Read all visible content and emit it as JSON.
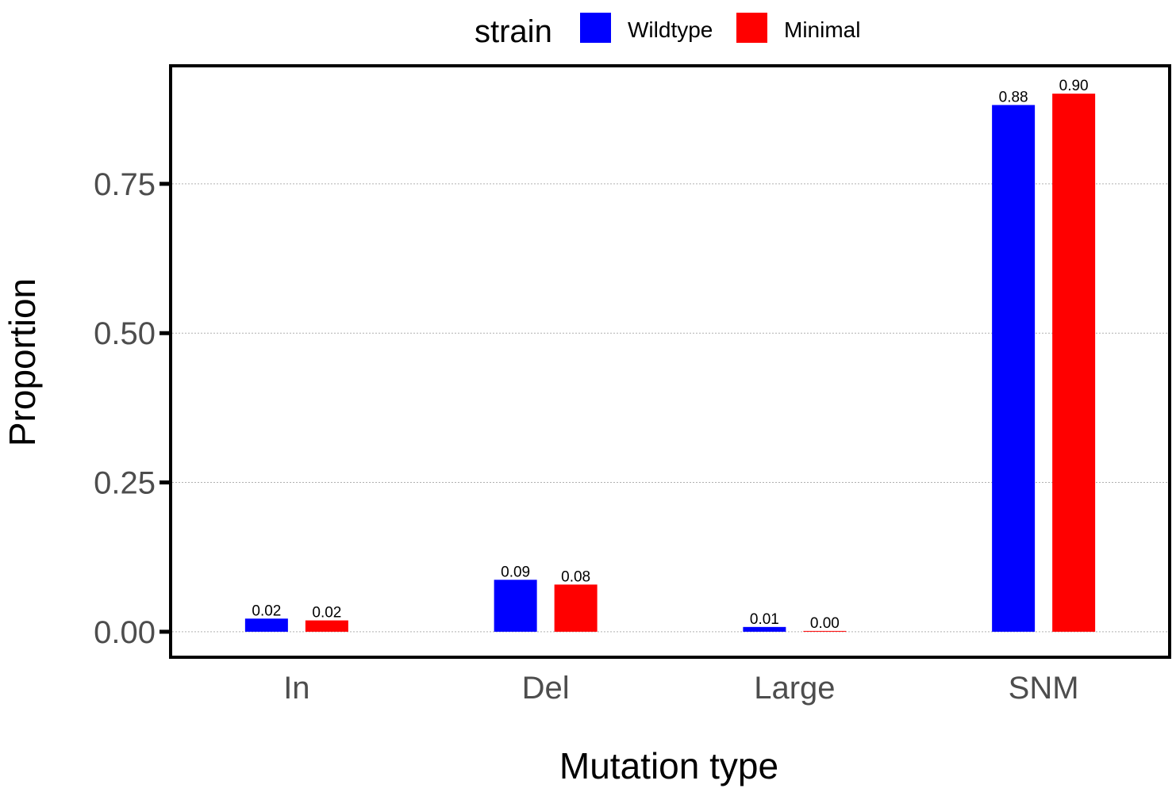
{
  "chart_data": {
    "type": "bar",
    "title": "",
    "xlabel": "Mutation type",
    "ylabel": "Proportion",
    "categories": [
      "In",
      "Del",
      "Large",
      "SNM"
    ],
    "series": [
      {
        "name": "Wildtype",
        "color": "#0000ff",
        "values": [
          0.022,
          0.087,
          0.008,
          0.882
        ],
        "labels": [
          "0.02",
          "0.09",
          "0.01",
          "0.88"
        ]
      },
      {
        "name": "Minimal",
        "color": "#ff0000",
        "values": [
          0.019,
          0.079,
          0.001,
          0.901
        ],
        "labels": [
          "0.02",
          "0.08",
          "0.00",
          "0.90"
        ]
      }
    ],
    "ylim": [
      -0.04,
      0.945
    ],
    "yticks": [
      0,
      0.25,
      0.5,
      0.75
    ],
    "ytick_labels": [
      "0.00",
      "0.25",
      "0.50",
      "0.75"
    ],
    "legend": {
      "title": "strain",
      "position": "top"
    },
    "grid": {
      "major_y": true,
      "style": "dotted"
    }
  }
}
